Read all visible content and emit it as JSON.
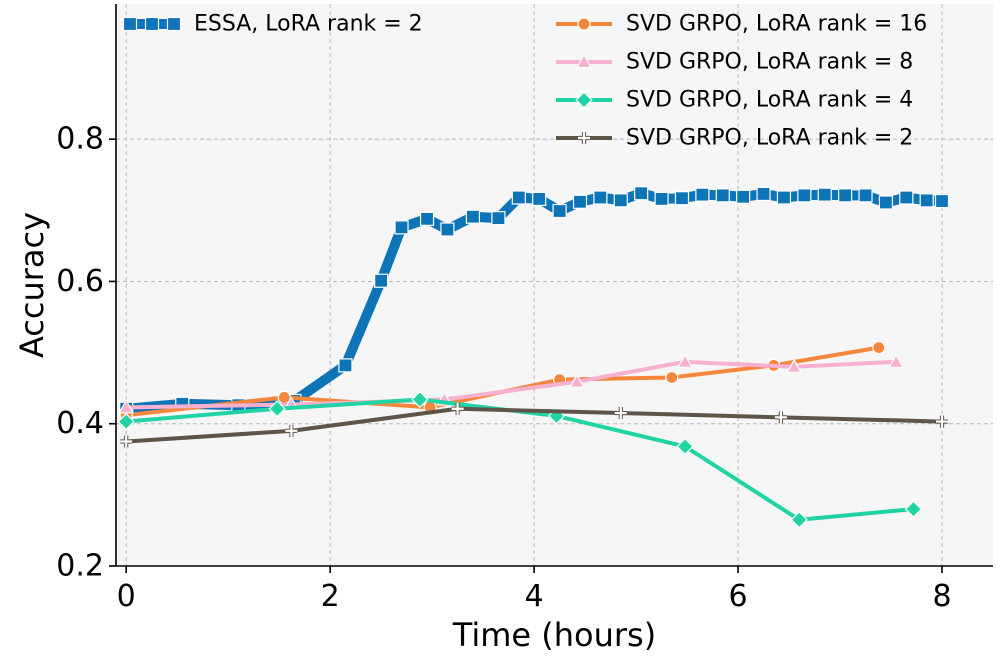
{
  "chart_data": {
    "type": "line",
    "title": "",
    "xlabel": "Time (hours)",
    "ylabel": "Accuracy",
    "xlim": [
      -0.1,
      8.5
    ],
    "ylim": [
      0.2,
      0.99
    ],
    "xticks": [
      0,
      2,
      4,
      6,
      8
    ],
    "yticks": [
      0.2,
      0.4,
      0.6,
      0.8
    ],
    "xtick_labels": [
      "0",
      "2",
      "4",
      "6",
      "8"
    ],
    "ytick_labels": [
      "0.2",
      "0.4",
      "0.6",
      "0.8"
    ],
    "grid": true,
    "background": "#f6f6f6",
    "legend_placement": "top",
    "series": [
      {
        "name": "ESSA, LoRA rank = 2",
        "color": "#0c74b7",
        "marker": "square",
        "x": [
          0,
          0.55,
          1.1,
          1.65,
          2.15,
          2.5,
          2.7,
          2.95,
          3.15,
          3.4,
          3.65,
          3.85,
          4.05,
          4.25,
          4.45,
          4.65,
          4.85,
          5.05,
          5.25,
          5.45,
          5.65,
          5.85,
          6.05,
          6.25,
          6.45,
          6.65,
          6.85,
          7.05,
          7.25,
          7.45,
          7.65,
          7.85,
          8.0
        ],
        "y": [
          0.421,
          0.428,
          0.426,
          0.432,
          0.482,
          0.601,
          0.676,
          0.688,
          0.673,
          0.691,
          0.689,
          0.718,
          0.716,
          0.699,
          0.712,
          0.718,
          0.714,
          0.724,
          0.716,
          0.717,
          0.722,
          0.721,
          0.719,
          0.723,
          0.718,
          0.721,
          0.722,
          0.721,
          0.721,
          0.711,
          0.718,
          0.714,
          0.713
        ]
      },
      {
        "name": "SVD GRPO, LoRA rank = 16",
        "color": "#f4873b",
        "marker": "circle",
        "x": [
          0,
          1.55,
          2.98,
          4.25,
          5.35,
          6.35,
          7.38
        ],
        "y": [
          0.412,
          0.437,
          0.423,
          0.462,
          0.465,
          0.482,
          0.507
        ]
      },
      {
        "name": "SVD GRPO, LoRA rank = 8",
        "color": "#f7b0cf",
        "marker": "triangle",
        "x": [
          0,
          1.62,
          3.12,
          4.42,
          5.48,
          6.55,
          7.55
        ],
        "y": [
          0.423,
          0.427,
          0.434,
          0.459,
          0.487,
          0.48,
          0.487
        ]
      },
      {
        "name": "SVD GRPO, LoRA rank = 4",
        "color": "#20d3a4",
        "marker": "diamond",
        "x": [
          0,
          1.48,
          2.88,
          4.22,
          5.48,
          6.6,
          7.72
        ],
        "y": [
          0.403,
          0.421,
          0.434,
          0.411,
          0.368,
          0.265,
          0.28
        ]
      },
      {
        "name": "SVD GRPO, LoRA rank = 2",
        "color": "#5f5448",
        "marker": "plus",
        "x": [
          0,
          1.62,
          3.25,
          4.85,
          6.42,
          8.0
        ],
        "y": [
          0.375,
          0.39,
          0.421,
          0.415,
          0.409,
          0.403
        ]
      }
    ]
  }
}
